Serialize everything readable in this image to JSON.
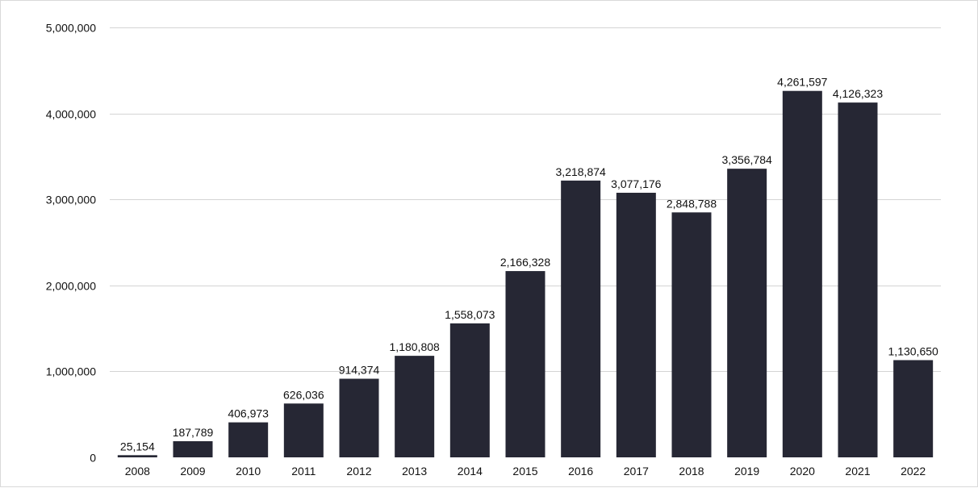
{
  "chart_data": {
    "type": "bar",
    "title": "",
    "xlabel": "",
    "ylabel": "",
    "categories": [
      "2008",
      "2009",
      "2010",
      "2011",
      "2012",
      "2013",
      "2014",
      "2015",
      "2016",
      "2017",
      "2018",
      "2019",
      "2020",
      "2021",
      "2022"
    ],
    "values": [
      25154,
      187789,
      406973,
      626036,
      914374,
      1180808,
      1558073,
      2166328,
      3218874,
      3077176,
      2848788,
      3356784,
      4261597,
      4126323,
      1130650
    ],
    "value_labels": [
      "25,154",
      "187,789",
      "406,973",
      "626,036",
      "914,374",
      "1,180,808",
      "1,558,073",
      "2,166,328",
      "3,218,874",
      "3,077,176",
      "2,848,788",
      "3,356,784",
      "4,261,597",
      "4,126,323",
      "1,130,650"
    ],
    "ylim": [
      0,
      5000000
    ],
    "yticks": [
      0,
      1000000,
      2000000,
      3000000,
      4000000,
      5000000
    ],
    "ytick_labels": [
      "0",
      "1,000,000",
      "2,000,000",
      "3,000,000",
      "4,000,000",
      "5,000,000"
    ],
    "grid": true,
    "legend": "none",
    "bar_color": "#262734"
  }
}
